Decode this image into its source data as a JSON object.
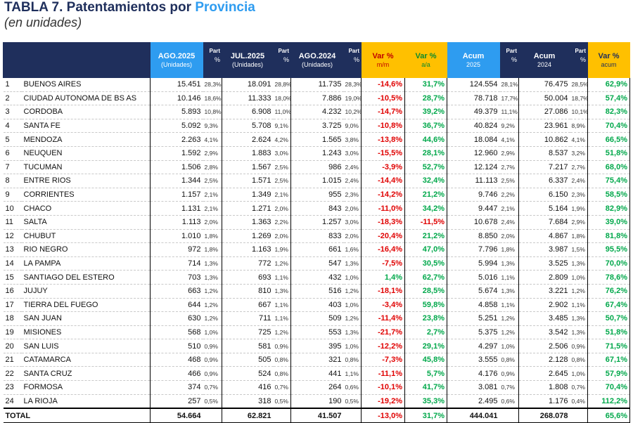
{
  "header": {
    "title": "TABLA 7. Patentamientos por ",
    "title_highlight": "Provincia",
    "subtitle": "(en unidades)"
  },
  "table": {
    "columns": [
      [
        "AGO.2025",
        "(Unidades)"
      ],
      [
        "Part",
        "%"
      ],
      [
        "JUL.2025",
        "(Unidades)"
      ],
      [
        "Part",
        "%"
      ],
      [
        "AGO.2024",
        "(Unidades)"
      ],
      [
        "Part",
        "%"
      ],
      [
        "Var %",
        "m/m"
      ],
      [
        "Var %",
        "a/a"
      ],
      [
        "Acum",
        "2025"
      ],
      [
        "Part",
        "%"
      ],
      [
        "Acum",
        "2024"
      ],
      [
        "Part",
        "%"
      ],
      [
        "Var %",
        "acum"
      ]
    ],
    "rows": [
      [
        "1",
        "BUENOS AIRES",
        "15.451",
        "28,3%",
        "18.091",
        "28,8%",
        "11.735",
        "28,3%",
        "-14,6%",
        "31,7%",
        "124.554",
        "28,1%",
        "76.475",
        "28,5%",
        "62,9%"
      ],
      [
        "2",
        "CIUDAD AUTONOMA DE BS AS",
        "10.146",
        "18,6%",
        "11.333",
        "18,0%",
        "7.886",
        "19,0%",
        "-10,5%",
        "28,7%",
        "78.718",
        "17,7%",
        "50.004",
        "18,7%",
        "57,4%"
      ],
      [
        "3",
        "CORDOBA",
        "5.893",
        "10,8%",
        "6.908",
        "11,0%",
        "4.232",
        "10,2%",
        "-14,7%",
        "39,2%",
        "49.379",
        "11,1%",
        "27.086",
        "10,1%",
        "82,3%"
      ],
      [
        "4",
        "SANTA FE",
        "5.092",
        "9,3%",
        "5.708",
        "9,1%",
        "3.725",
        "9,0%",
        "-10,8%",
        "36,7%",
        "40.824",
        "9,2%",
        "23.961",
        "8,9%",
        "70,4%"
      ],
      [
        "5",
        "MENDOZA",
        "2.263",
        "4,1%",
        "2.624",
        "4,2%",
        "1.565",
        "3,8%",
        "-13,8%",
        "44,6%",
        "18.084",
        "4,1%",
        "10.862",
        "4,1%",
        "66,5%"
      ],
      [
        "6",
        "NEUQUEN",
        "1.592",
        "2,9%",
        "1.883",
        "3,0%",
        "1.243",
        "3,0%",
        "-15,5%",
        "28,1%",
        "12.960",
        "2,9%",
        "8.537",
        "3,2%",
        "51,8%"
      ],
      [
        "7",
        "TUCUMAN",
        "1.506",
        "2,8%",
        "1.567",
        "2,5%",
        "986",
        "2,4%",
        "-3,9%",
        "52,7%",
        "12.124",
        "2,7%",
        "7.217",
        "2,7%",
        "68,0%"
      ],
      [
        "8",
        "ENTRE RIOS",
        "1.344",
        "2,5%",
        "1.571",
        "2,5%",
        "1.015",
        "2,4%",
        "-14,4%",
        "32,4%",
        "11.113",
        "2,5%",
        "6.337",
        "2,4%",
        "75,4%"
      ],
      [
        "9",
        "CORRIENTES",
        "1.157",
        "2,1%",
        "1.349",
        "2,1%",
        "955",
        "2,3%",
        "-14,2%",
        "21,2%",
        "9.746",
        "2,2%",
        "6.150",
        "2,3%",
        "58,5%"
      ],
      [
        "10",
        "CHACO",
        "1.131",
        "2,1%",
        "1.271",
        "2,0%",
        "843",
        "2,0%",
        "-11,0%",
        "34,2%",
        "9.447",
        "2,1%",
        "5.164",
        "1,9%",
        "82,9%"
      ],
      [
        "11",
        "SALTA",
        "1.113",
        "2,0%",
        "1.363",
        "2,2%",
        "1.257",
        "3,0%",
        "-18,3%",
        "-11,5%",
        "10.678",
        "2,4%",
        "7.684",
        "2,9%",
        "39,0%"
      ],
      [
        "12",
        "CHUBUT",
        "1.010",
        "1,8%",
        "1.269",
        "2,0%",
        "833",
        "2,0%",
        "-20,4%",
        "21,2%",
        "8.850",
        "2,0%",
        "4.867",
        "1,8%",
        "81,8%"
      ],
      [
        "13",
        "RIO NEGRO",
        "972",
        "1,8%",
        "1.163",
        "1,9%",
        "661",
        "1,6%",
        "-16,4%",
        "47,0%",
        "7.796",
        "1,8%",
        "3.987",
        "1,5%",
        "95,5%"
      ],
      [
        "14",
        "LA PAMPA",
        "714",
        "1,3%",
        "772",
        "1,2%",
        "547",
        "1,3%",
        "-7,5%",
        "30,5%",
        "5.994",
        "1,3%",
        "3.525",
        "1,3%",
        "70,0%"
      ],
      [
        "15",
        "SANTIAGO DEL ESTERO",
        "703",
        "1,3%",
        "693",
        "1,1%",
        "432",
        "1,0%",
        "1,4%",
        "62,7%",
        "5.016",
        "1,1%",
        "2.809",
        "1,0%",
        "78,6%"
      ],
      [
        "16",
        "JUJUY",
        "663",
        "1,2%",
        "810",
        "1,3%",
        "516",
        "1,2%",
        "-18,1%",
        "28,5%",
        "5.674",
        "1,3%",
        "3.221",
        "1,2%",
        "76,2%"
      ],
      [
        "17",
        "TIERRA DEL FUEGO",
        "644",
        "1,2%",
        "667",
        "1,1%",
        "403",
        "1,0%",
        "-3,4%",
        "59,8%",
        "4.858",
        "1,1%",
        "2.902",
        "1,1%",
        "67,4%"
      ],
      [
        "18",
        "SAN JUAN",
        "630",
        "1,2%",
        "711",
        "1,1%",
        "509",
        "1,2%",
        "-11,4%",
        "23,8%",
        "5.251",
        "1,2%",
        "3.485",
        "1,3%",
        "50,7%"
      ],
      [
        "19",
        "MISIONES",
        "568",
        "1,0%",
        "725",
        "1,2%",
        "553",
        "1,3%",
        "-21,7%",
        "2,7%",
        "5.375",
        "1,2%",
        "3.542",
        "1,3%",
        "51,8%"
      ],
      [
        "20",
        "SAN LUIS",
        "510",
        "0,9%",
        "581",
        "0,9%",
        "395",
        "1,0%",
        "-12,2%",
        "29,1%",
        "4.297",
        "1,0%",
        "2.506",
        "0,9%",
        "71,5%"
      ],
      [
        "21",
        "CATAMARCA",
        "468",
        "0,9%",
        "505",
        "0,8%",
        "321",
        "0,8%",
        "-7,3%",
        "45,8%",
        "3.555",
        "0,8%",
        "2.128",
        "0,8%",
        "67,1%"
      ],
      [
        "22",
        "SANTA CRUZ",
        "466",
        "0,9%",
        "524",
        "0,8%",
        "441",
        "1,1%",
        "-11,1%",
        "5,7%",
        "4.176",
        "0,9%",
        "2.645",
        "1,0%",
        "57,9%"
      ],
      [
        "23",
        "FORMOSA",
        "374",
        "0,7%",
        "416",
        "0,7%",
        "264",
        "0,6%",
        "-10,1%",
        "41,7%",
        "3.081",
        "0,7%",
        "1.808",
        "0,7%",
        "70,4%"
      ],
      [
        "24",
        "LA RIOJA",
        "257",
        "0,5%",
        "318",
        "0,5%",
        "190",
        "0,5%",
        "-19,2%",
        "35,3%",
        "2.495",
        "0,6%",
        "1.176",
        "0,4%",
        "112,2%"
      ]
    ],
    "total": {
      "label": "TOTAL",
      "values": [
        "54.664",
        "62.821",
        "41.507",
        "-13,0%",
        "31,7%",
        "444.041",
        "268.078",
        "65,6%"
      ]
    }
  }
}
